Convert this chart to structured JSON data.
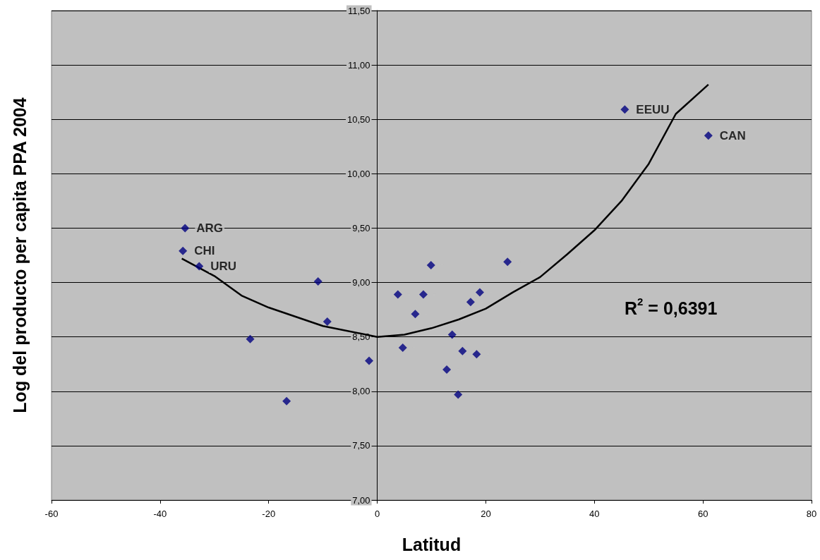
{
  "chart_data": {
    "type": "scatter",
    "xlabel": "Latitud",
    "ylabel": "Log del producto per capita PPA 2004",
    "xlim": [
      -60,
      80
    ],
    "xticks": [
      -60,
      -40,
      -20,
      0,
      20,
      40,
      60,
      80
    ],
    "ylim": [
      7,
      11.5
    ],
    "yticks": [
      {
        "value": 7,
        "label": "7,00"
      },
      {
        "value": 7.5,
        "label": "7,50"
      },
      {
        "value": 8,
        "label": "8,00"
      },
      {
        "value": 8.5,
        "label": "8,50"
      },
      {
        "value": 9,
        "label": "9,00"
      },
      {
        "value": 9.5,
        "label": "9,50"
      },
      {
        "value": 10,
        "label": "10,00"
      },
      {
        "value": 10.5,
        "label": "10,50"
      },
      {
        "value": 11,
        "label": "11,00"
      },
      {
        "value": 11.5,
        "label": "11,50"
      }
    ],
    "grid": "y",
    "marker": "diamond",
    "annotations": [
      "R$^{2}$ = 0,6391"
    ],
    "series": [
      {
        "color": "#000080",
        "x": [
          -35.4,
          -35.8,
          -32.8,
          -23.4,
          -16.7,
          -10.9,
          -9.2,
          -1.5,
          3.8,
          4.7,
          7.0,
          8.5,
          9.9,
          24.0,
          13.8,
          15.7,
          12.8,
          14.9,
          17.2,
          18.9,
          18.3,
          45.6,
          61.0
        ],
        "values": [
          9.5,
          9.29,
          9.15,
          8.48,
          7.91,
          9.01,
          8.64,
          8.28,
          8.89,
          8.4,
          8.71,
          8.89,
          9.16,
          9.19,
          8.52,
          8.37,
          8.2,
          7.97,
          8.82,
          8.91,
          8.34,
          10.59,
          10.35
        ],
        "value_labels": [
          "ARG",
          "CHI",
          "URU",
          null,
          null,
          null,
          null,
          null,
          null,
          null,
          null,
          null,
          null,
          null,
          null,
          null,
          null,
          null,
          null,
          null,
          null,
          "EEUU",
          "CAN"
        ]
      },
      {
        "type": "line",
        "color": "#000000",
        "marker": "none",
        "x": [
          -36,
          -30,
          -25,
          -20,
          -10,
          0,
          5,
          10,
          15,
          20,
          25,
          30,
          35,
          40,
          45,
          50,
          55,
          61
        ],
        "values": [
          9.22,
          9.06,
          8.88,
          8.77,
          8.6,
          8.5,
          8.52,
          8.58,
          8.66,
          8.76,
          8.91,
          9.05,
          9.26,
          9.48,
          9.75,
          10.09,
          10.55,
          10.82
        ]
      }
    ]
  }
}
